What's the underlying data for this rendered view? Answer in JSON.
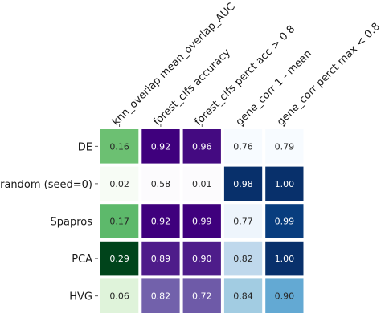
{
  "chart_data": {
    "type": "heatmap",
    "columns": [
      "knn_overlap mean_overlap_AUC",
      "forest_clfs accuracy",
      "forest_clfs perct acc > 0.8",
      "gene_corr 1 - mean",
      "gene_corr perct max < 0.8"
    ],
    "rows": [
      "DE",
      "random (seed=0)",
      "Spapros",
      "PCA",
      "HVG"
    ],
    "values": [
      [
        0.16,
        0.92,
        0.96,
        0.76,
        0.79
      ],
      [
        0.02,
        0.58,
        0.01,
        0.98,
        1.0
      ],
      [
        0.17,
        0.92,
        0.99,
        0.77,
        0.99
      ],
      [
        0.29,
        0.89,
        0.9,
        0.82,
        1.0
      ],
      [
        0.06,
        0.82,
        0.72,
        0.84,
        0.9
      ]
    ],
    "column_colormaps": [
      "Greens",
      "Purples",
      "Purples",
      "Blues",
      "Blues"
    ],
    "column_color_scales": [
      [
        0.02,
        0.29
      ],
      [
        0.58,
        0.92
      ],
      [
        0.01,
        0.99
      ],
      [
        0.76,
        0.98
      ],
      [
        0.79,
        1.0
      ]
    ],
    "colormap_ramps": {
      "Greens": [
        "#f7fcf5",
        "#e5f5e0",
        "#c7e9c0",
        "#a1d99b",
        "#74c476",
        "#41ab5d",
        "#238b45",
        "#006d2c",
        "#00441b"
      ],
      "Purples": [
        "#fcfbfd",
        "#efedf5",
        "#dadaeb",
        "#bcbddc",
        "#9e9ac8",
        "#807dba",
        "#6a51a3",
        "#54278f",
        "#3f007d"
      ],
      "Blues": [
        "#f7fbff",
        "#deebf7",
        "#c6dbef",
        "#9ecae1",
        "#6baed6",
        "#4292c6",
        "#2171b5",
        "#08519c",
        "#08306b"
      ]
    },
    "value_decimals": 2,
    "grid": false,
    "legend": "none"
  }
}
